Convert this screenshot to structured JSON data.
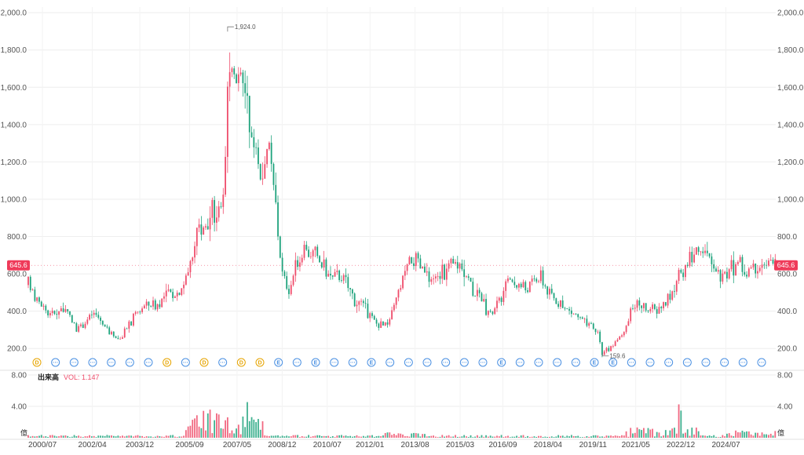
{
  "chart_data": {
    "type": "candlestick",
    "price_axis": {
      "ticks": [
        200,
        400,
        600,
        800,
        1000,
        1200,
        1400,
        1600,
        1800,
        2000
      ],
      "tick_labels": [
        "200.0",
        "400.0",
        "600.0",
        "800.0",
        "1,000.0",
        "1,200.0",
        "1,400.0",
        "1,600.0",
        "1,800.0",
        "2,000.0"
      ],
      "range": [
        100,
        2030
      ]
    },
    "volume_axis": {
      "ticks": [
        4,
        8
      ],
      "tick_labels": [
        "4.00",
        "8.00"
      ],
      "unit_label": "億",
      "range": [
        0,
        8.3
      ]
    },
    "x_tick_labels": [
      "2000/07",
      "2002/04",
      "2003/12",
      "2005/09",
      "2007/05",
      "2008/12",
      "2010/07",
      "2012/01",
      "2013/08",
      "2015/03",
      "2016/09",
      "2018/04",
      "2019/11",
      "2021/05",
      "2022/12",
      "2024/07"
    ],
    "x_range": [
      "2000/01",
      "2026/04"
    ],
    "current_price": {
      "value": 645.6,
      "label": "645.6"
    },
    "high_annotation": {
      "date": "2007/01",
      "value": 1924.0,
      "label": "1,924.0"
    },
    "low_annotation": {
      "date": "2020/03",
      "value": 160,
      "label": "159.6"
    },
    "volume_panel": {
      "title": "出来高",
      "indicator": "VOL: 1.147"
    },
    "events": [
      "D",
      "···",
      "···",
      "···",
      "···",
      "···",
      "···",
      "D",
      "···",
      "D",
      "···",
      "D",
      "D",
      "E",
      "···",
      "E",
      "···",
      "···",
      "E",
      "···",
      "···",
      "···",
      "···",
      "···",
      "···",
      "E",
      "···",
      "···",
      "···",
      "···",
      "E",
      "E",
      "···",
      "···",
      "···",
      "···",
      "···",
      "···",
      "···",
      "···"
    ],
    "price_series": [
      [
        "2000/01",
        540
      ],
      [
        "2000/04",
        470
      ],
      [
        "2000/07",
        430
      ],
      [
        "2000/10",
        380
      ],
      [
        "2001/01",
        400
      ],
      [
        "2001/04",
        420
      ],
      [
        "2001/07",
        350
      ],
      [
        "2001/10",
        300
      ],
      [
        "2002/01",
        340
      ],
      [
        "2002/04",
        390
      ],
      [
        "2002/07",
        360
      ],
      [
        "2002/10",
        300
      ],
      [
        "2003/01",
        270
      ],
      [
        "2003/04",
        250
      ],
      [
        "2003/07",
        310
      ],
      [
        "2003/10",
        380
      ],
      [
        "2004/01",
        420
      ],
      [
        "2004/04",
        440
      ],
      [
        "2004/07",
        430
      ],
      [
        "2004/10",
        470
      ],
      [
        "2005/01",
        500
      ],
      [
        "2005/04",
        500
      ],
      [
        "2005/07",
        560
      ],
      [
        "2005/10",
        680
      ],
      [
        "2006/01",
        880
      ],
      [
        "2006/04",
        840
      ],
      [
        "2006/07",
        920
      ],
      [
        "2006/10",
        980
      ],
      [
        "2006/12",
        1100
      ],
      [
        "2007/01",
        1600
      ],
      [
        "2007/03",
        1750
      ],
      [
        "2007/06",
        1650
      ],
      [
        "2007/09",
        1540
      ],
      [
        "2007/12",
        1300
      ],
      [
        "2008/03",
        1150
      ],
      [
        "2008/06",
        1300
      ],
      [
        "2008/09",
        1000
      ],
      [
        "2008/12",
        600
      ],
      [
        "2009/03",
        520
      ],
      [
        "2009/06",
        650
      ],
      [
        "2009/09",
        720
      ],
      [
        "2010/01",
        710
      ],
      [
        "2010/04",
        660
      ],
      [
        "2010/07",
        600
      ],
      [
        "2010/10",
        570
      ],
      [
        "2011/01",
        600
      ],
      [
        "2011/04",
        520
      ],
      [
        "2011/07",
        460
      ],
      [
        "2011/10",
        420
      ],
      [
        "2012/01",
        380
      ],
      [
        "2012/04",
        330
      ],
      [
        "2012/07",
        320
      ],
      [
        "2012/10",
        370
      ],
      [
        "2013/01",
        500
      ],
      [
        "2013/04",
        620
      ],
      [
        "2013/07",
        680
      ],
      [
        "2013/10",
        640
      ],
      [
        "2014/01",
        600
      ],
      [
        "2014/04",
        560
      ],
      [
        "2014/07",
        600
      ],
      [
        "2014/10",
        620
      ],
      [
        "2015/01",
        660
      ],
      [
        "2015/04",
        650
      ],
      [
        "2015/07",
        560
      ],
      [
        "2015/10",
        480
      ],
      [
        "2016/01",
        430
      ],
      [
        "2016/04",
        380
      ],
      [
        "2016/07",
        440
      ],
      [
        "2016/10",
        510
      ],
      [
        "2017/01",
        560
      ],
      [
        "2017/04",
        540
      ],
      [
        "2017/07",
        520
      ],
      [
        "2017/10",
        560
      ],
      [
        "2018/01",
        590
      ],
      [
        "2018/04",
        500
      ],
      [
        "2018/07",
        460
      ],
      [
        "2018/10",
        420
      ],
      [
        "2019/01",
        400
      ],
      [
        "2019/04",
        380
      ],
      [
        "2019/07",
        340
      ],
      [
        "2019/10",
        310
      ],
      [
        "2020/01",
        290
      ],
      [
        "2020/03",
        170
      ],
      [
        "2020/06",
        200
      ],
      [
        "2020/09",
        240
      ],
      [
        "2021/01",
        320
      ],
      [
        "2021/04",
        420
      ],
      [
        "2021/07",
        440
      ],
      [
        "2021/10",
        420
      ],
      [
        "2022/01",
        400
      ],
      [
        "2022/04",
        430
      ],
      [
        "2022/07",
        470
      ],
      [
        "2022/10",
        540
      ],
      [
        "2023/01",
        620
      ],
      [
        "2023/04",
        680
      ],
      [
        "2023/07",
        740
      ],
      [
        "2023/10",
        700
      ],
      [
        "2024/01",
        660
      ],
      [
        "2024/04",
        620
      ],
      [
        "2024/07",
        580
      ],
      [
        "2024/10",
        640
      ],
      [
        "2025/01",
        660
      ],
      [
        "2025/04",
        600
      ],
      [
        "2025/07",
        640
      ],
      [
        "2025/10",
        650
      ],
      [
        "2026/01",
        645.6
      ]
    ]
  },
  "colors": {
    "up": "#ef4d6b",
    "down": "#1fa37d",
    "current_tag": "#ef3b5a",
    "dividend": "#e6a400",
    "event": "#4a90e2",
    "earnings": "#4a90e2",
    "grid": "#eeeeee",
    "vol_indicator": "#ef4d6b"
  }
}
